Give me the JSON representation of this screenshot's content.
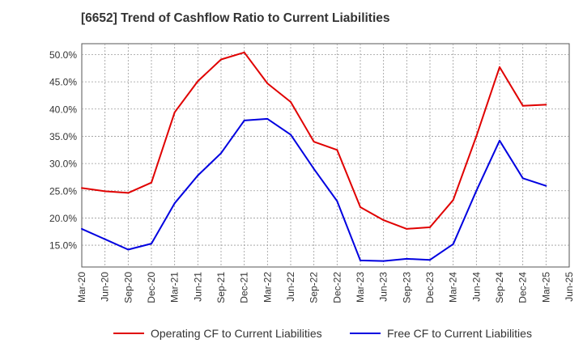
{
  "colors": {
    "operating": "#e00000",
    "free": "#0000e0",
    "grid": "#9a9a9a",
    "axis": "#555555"
  },
  "chart_data": {
    "type": "line",
    "title": "[6652]  Trend of Cashflow Ratio to Current Liabilities",
    "xlabel": "",
    "ylabel": "",
    "ylim": [
      11,
      52
    ],
    "y_ticks": [
      "15.0%",
      "20.0%",
      "25.0%",
      "30.0%",
      "35.0%",
      "40.0%",
      "45.0%",
      "50.0%"
    ],
    "y_tick_values": [
      15,
      20,
      25,
      30,
      35,
      40,
      45,
      50
    ],
    "x_ticks": [
      "Mar-20",
      "Jun-20",
      "Sep-20",
      "Dec-20",
      "Mar-21",
      "Jun-21",
      "Sep-21",
      "Dec-21",
      "Mar-22",
      "Jun-22",
      "Sep-22",
      "Dec-22",
      "Mar-23",
      "Jun-23",
      "Sep-23",
      "Dec-23",
      "Mar-24",
      "Jun-24",
      "Sep-24",
      "Dec-24",
      "Mar-25",
      "Jun-25"
    ],
    "grid": true,
    "legend_position": "bottom",
    "series": [
      {
        "name": "Operating CF to Current Liabilities",
        "x": [
          "Mar-20",
          "Jun-20",
          "Sep-20",
          "Dec-20",
          "Mar-21",
          "Jun-21",
          "Sep-21",
          "Dec-21",
          "Mar-22",
          "Jun-22",
          "Sep-22",
          "Dec-22",
          "Mar-23",
          "Jun-23",
          "Sep-23",
          "Dec-23",
          "Mar-24",
          "Jun-24",
          "Sep-24",
          "Dec-24",
          "Mar-25"
        ],
        "values": [
          25.5,
          24.9,
          24.6,
          26.5,
          39.4,
          45.1,
          49.1,
          50.4,
          44.7,
          41.3,
          34.0,
          32.5,
          22.0,
          19.6,
          18.0,
          18.3,
          23.3,
          35.0,
          47.7,
          40.6,
          40.8
        ]
      },
      {
        "name": "Free CF to Current Liabilities",
        "x": [
          "Mar-20",
          "Jun-20",
          "Sep-20",
          "Dec-20",
          "Mar-21",
          "Jun-21",
          "Sep-21",
          "Dec-21",
          "Mar-22",
          "Jun-22",
          "Sep-22",
          "Dec-22",
          "Mar-23",
          "Jun-23",
          "Sep-23",
          "Dec-23",
          "Mar-24",
          "Jun-24",
          "Sep-24",
          "Dec-24",
          "Mar-25"
        ],
        "values": [
          18.0,
          16.1,
          14.2,
          15.3,
          22.7,
          27.8,
          31.9,
          37.9,
          38.2,
          35.3,
          29.0,
          23.1,
          12.2,
          12.1,
          12.5,
          12.3,
          15.2,
          25.0,
          34.2,
          27.3,
          25.9
        ]
      }
    ]
  }
}
